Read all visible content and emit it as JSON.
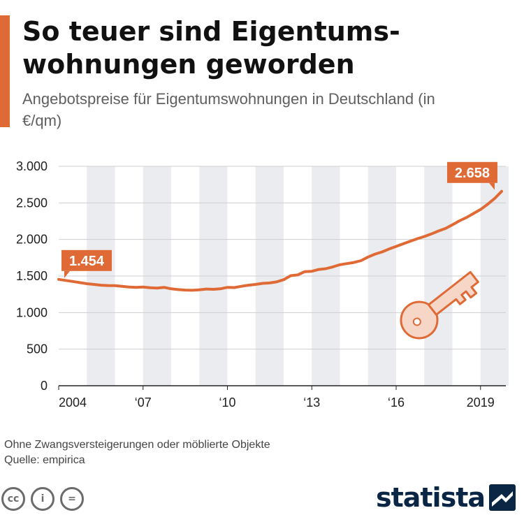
{
  "header": {
    "title": "So teuer sind Eigentums-wohnungen geworden",
    "subtitle": "Angebotspreise für Eigentumswohnungen in Deutschland (in €/qm)"
  },
  "chart_data": {
    "type": "line",
    "title": "So teuer sind Eigentums-wohnungen geworden",
    "subtitle": "Angebotspreise für Eigentumswohnungen in Deutschland (in €/qm)",
    "xlabel": "",
    "ylabel": "",
    "ylim": [
      0,
      3000
    ],
    "y_ticks": [
      0,
      500,
      1000,
      1500,
      2000,
      2500,
      3000
    ],
    "y_tick_labels": [
      "0",
      "500",
      "1.000",
      "1.500",
      "2.000",
      "2.500",
      "3.000"
    ],
    "xlim": [
      2004,
      2019.9
    ],
    "x_ticks": [
      2004,
      2007,
      2010,
      2013,
      2016,
      2019
    ],
    "x_tick_labels": [
      "2004",
      "‘07",
      "‘10",
      "‘13",
      "‘16",
      "2019"
    ],
    "grid": true,
    "alternating_year_bands": true,
    "line_color": "#e06a35",
    "series": [
      {
        "x": [
          2004.0,
          2004.25,
          2004.5,
          2004.75,
          2005.0,
          2005.25,
          2005.5,
          2005.75,
          2006.0,
          2006.25,
          2006.5,
          2006.75,
          2007.0,
          2007.25,
          2007.5,
          2007.75,
          2008.0,
          2008.25,
          2008.5,
          2008.75,
          2009.0,
          2009.25,
          2009.5,
          2009.75,
          2010.0,
          2010.25,
          2010.5,
          2010.75,
          2011.0,
          2011.25,
          2011.5,
          2011.75,
          2012.0,
          2012.25,
          2012.5,
          2012.75,
          2013.0,
          2013.25,
          2013.5,
          2013.75,
          2014.0,
          2014.25,
          2014.5,
          2014.75,
          2015.0,
          2015.25,
          2015.5,
          2015.75,
          2016.0,
          2016.25,
          2016.5,
          2016.75,
          2017.0,
          2017.25,
          2017.5,
          2017.75,
          2018.0,
          2018.25,
          2018.5,
          2018.75,
          2019.0,
          2019.25,
          2019.5,
          2019.75
        ],
        "values": [
          1454,
          1440,
          1425,
          1410,
          1395,
          1385,
          1375,
          1370,
          1368,
          1360,
          1350,
          1345,
          1350,
          1340,
          1335,
          1345,
          1325,
          1315,
          1308,
          1305,
          1312,
          1322,
          1318,
          1325,
          1345,
          1342,
          1360,
          1375,
          1385,
          1400,
          1405,
          1420,
          1450,
          1505,
          1515,
          1560,
          1565,
          1590,
          1600,
          1625,
          1655,
          1670,
          1685,
          1710,
          1760,
          1800,
          1830,
          1870,
          1905,
          1940,
          1975,
          2010,
          2040,
          2075,
          2115,
          2150,
          2200,
          2255,
          2300,
          2355,
          2410,
          2480,
          2560,
          2658
        ]
      }
    ],
    "annotations": [
      {
        "label": "1.454",
        "x": 2004.0,
        "y": 1454
      },
      {
        "label": "2.658",
        "x": 2019.75,
        "y": 2658
      }
    ]
  },
  "footnote": {
    "note": "Ohne Zwangsversteigerungen oder möblierte Objekte",
    "source": "Quelle: empirica"
  },
  "license_icons": [
    {
      "icon": "cc-icon",
      "label": "cc"
    },
    {
      "icon": "attribution-icon",
      "label": "i"
    },
    {
      "icon": "no-derivatives-icon",
      "label": "="
    }
  ],
  "brand": {
    "name": "statista",
    "logo_color": "#0b2545"
  }
}
